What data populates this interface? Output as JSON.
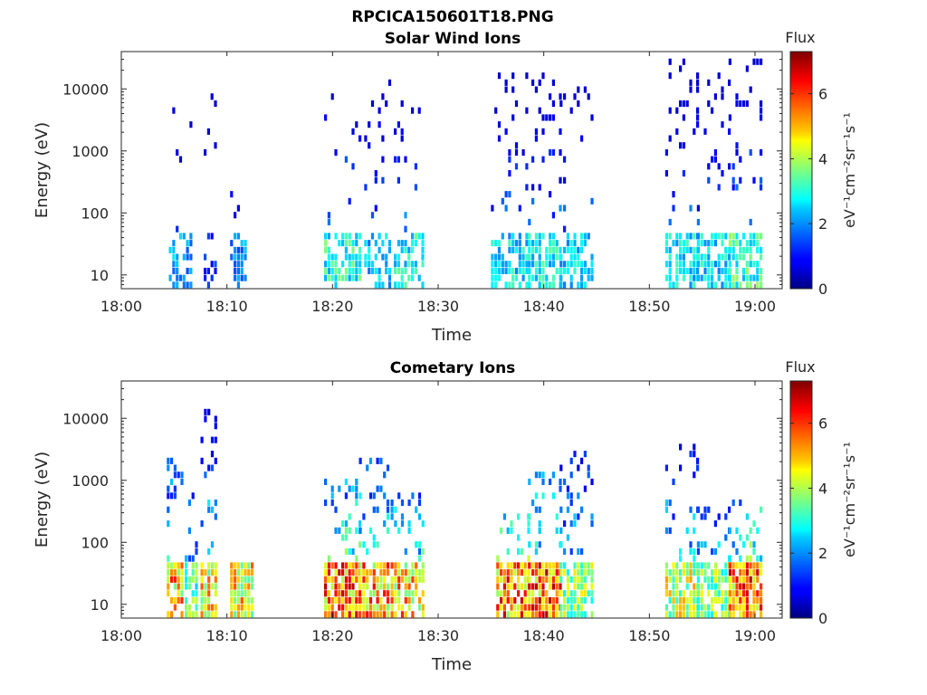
{
  "figure_title": "RPCICA150601T18.PNG",
  "colorbar_title": "Flux",
  "colorbar_unit": "eV⁻¹cm⁻²sr⁻¹s⁻¹",
  "chart_data": [
    {
      "type": "heatmap",
      "title": "Solar Wind Ions",
      "xlabel": "Time",
      "ylabel": "Energy (eV)",
      "x_tick_labels": [
        "18:00",
        "18:10",
        "18:20",
        "18:30",
        "18:40",
        "18:50",
        "19:00"
      ],
      "x_range_minutes": [
        0,
        63
      ],
      "y_scale": "log",
      "y_tick_labels": [
        "10",
        "100",
        "1000",
        "10000"
      ],
      "y_range": [
        6,
        40000
      ],
      "colorbar": {
        "ticks": [
          "0",
          "2",
          "4",
          "6"
        ],
        "range": [
          0,
          7.3
        ],
        "colormap": "jet"
      },
      "bursts": [
        {
          "start": 4.5,
          "end": 6.5,
          "peak_flux": 2.6,
          "max_energy": 4500,
          "density": 0.18
        },
        {
          "start": 7.8,
          "end": 9.0,
          "peak_flux": 1.5,
          "max_energy": 9500,
          "density": 0.12
        },
        {
          "start": 10.3,
          "end": 11.8,
          "peak_flux": 2.5,
          "max_energy": 300,
          "density": 0.22
        },
        {
          "start": 19.2,
          "end": 22.5,
          "peak_flux": 3.8,
          "max_energy": 15000,
          "density": 0.2
        },
        {
          "start": 23.0,
          "end": 25.6,
          "peak_flux": 3.0,
          "max_energy": 13000,
          "density": 0.22
        },
        {
          "start": 25.8,
          "end": 28.6,
          "peak_flux": 3.6,
          "max_energy": 10000,
          "density": 0.2
        },
        {
          "start": 35.0,
          "end": 38.5,
          "peak_flux": 3.3,
          "max_energy": 18000,
          "density": 0.32
        },
        {
          "start": 38.5,
          "end": 41.5,
          "peak_flux": 3.5,
          "max_energy": 18000,
          "density": 0.38
        },
        {
          "start": 41.5,
          "end": 44.5,
          "peak_flux": 3.1,
          "max_energy": 12000,
          "density": 0.3
        },
        {
          "start": 51.5,
          "end": 54.5,
          "peak_flux": 3.3,
          "max_energy": 35000,
          "density": 0.33
        },
        {
          "start": 54.5,
          "end": 57.5,
          "peak_flux": 3.2,
          "max_energy": 20000,
          "density": 0.3
        },
        {
          "start": 57.5,
          "end": 60.5,
          "peak_flux": 3.9,
          "max_energy": 30000,
          "density": 0.34
        }
      ]
    },
    {
      "type": "heatmap",
      "title": "Cometary Ions",
      "xlabel": "Time",
      "ylabel": "Energy (eV)",
      "x_tick_labels": [
        "18:00",
        "18:10",
        "18:20",
        "18:30",
        "18:40",
        "18:50",
        "19:00"
      ],
      "x_range_minutes": [
        0,
        63
      ],
      "y_scale": "log",
      "y_tick_labels": [
        "10",
        "100",
        "1000",
        "10000"
      ],
      "y_range": [
        6,
        40000
      ],
      "colorbar": {
        "ticks": [
          "0",
          "2",
          "4",
          "6"
        ],
        "range": [
          0,
          7.3
        ],
        "colormap": "jet"
      },
      "bursts": [
        {
          "start": 4.3,
          "end": 5.8,
          "peak_flux": 6.3,
          "max_energy": 2200,
          "density": 0.5
        },
        {
          "start": 6.0,
          "end": 7.2,
          "peak_flux": 4.3,
          "max_energy": 700,
          "density": 0.45
        },
        {
          "start": 7.5,
          "end": 9.0,
          "peak_flux": 5.9,
          "max_energy": 13000,
          "density": 0.5
        },
        {
          "start": 10.3,
          "end": 12.3,
          "peak_flux": 5.9,
          "max_energy": 45,
          "density": 0.6
        },
        {
          "start": 19.2,
          "end": 22.5,
          "peak_flux": 7.0,
          "max_energy": 1200,
          "density": 0.55
        },
        {
          "start": 22.5,
          "end": 25.3,
          "peak_flux": 6.5,
          "max_energy": 2500,
          "density": 0.5
        },
        {
          "start": 25.5,
          "end": 28.5,
          "peak_flux": 6.2,
          "max_energy": 600,
          "density": 0.5
        },
        {
          "start": 35.5,
          "end": 38.5,
          "peak_flux": 6.8,
          "max_energy": 300,
          "density": 0.5
        },
        {
          "start": 38.5,
          "end": 41.5,
          "peak_flux": 7.2,
          "max_energy": 1300,
          "density": 0.6
        },
        {
          "start": 41.5,
          "end": 44.5,
          "peak_flux": 4.8,
          "max_energy": 3000,
          "density": 0.45
        },
        {
          "start": 51.5,
          "end": 54.5,
          "peak_flux": 5.3,
          "max_energy": 3800,
          "density": 0.5
        },
        {
          "start": 54.5,
          "end": 57.5,
          "peak_flux": 4.8,
          "max_energy": 400,
          "density": 0.45
        },
        {
          "start": 57.5,
          "end": 60.5,
          "peak_flux": 7.1,
          "max_energy": 500,
          "density": 0.55
        }
      ]
    }
  ]
}
